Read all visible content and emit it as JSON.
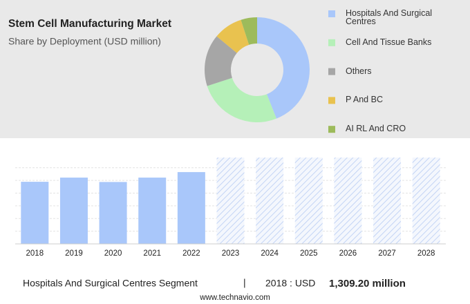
{
  "chart_data": [
    {
      "type": "donut",
      "title": "Stem Cell Manufacturing Market",
      "subtitle": "Share by Deployment (USD million)",
      "categories": [
        "Hospitals And Surgical Centres",
        "Cell And Tissue Banks",
        "Others",
        "P And BC",
        "AI RL And CRO"
      ],
      "values": [
        44,
        26,
        16,
        9,
        5
      ],
      "colors": [
        "#a9c7fa",
        "#b5f0b8",
        "#a6a6a6",
        "#e9c24f",
        "#9dbb5b"
      ]
    },
    {
      "type": "bar",
      "categories": [
        "2018",
        "2019",
        "2020",
        "2021",
        "2022",
        "2023",
        "2024",
        "2025",
        "2026",
        "2027",
        "2028"
      ],
      "values": [
        1309.2,
        1397,
        1305,
        1397,
        1513,
        null,
        null,
        null,
        null,
        null,
        null
      ],
      "color": "#a9c7fa",
      "ylim": [
        0,
        1820
      ],
      "grid": true
    }
  ],
  "footer": {
    "segment": "Hospitals And Surgical Centres Segment",
    "separator": "|",
    "year_label": "2018 : USD",
    "value": "1,309.20 million",
    "source": "www.technavio.com"
  }
}
